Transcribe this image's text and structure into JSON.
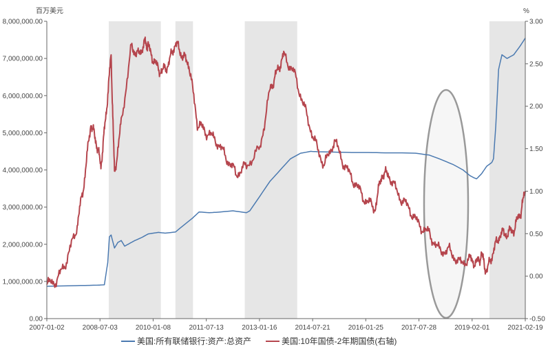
{
  "chart_data": {
    "type": "line",
    "title": "",
    "left_unit": "百万美元",
    "right_unit": "%",
    "x_tick_labels": [
      "2007-01-02",
      "2008-07-03",
      "2010-01-08",
      "2011-07-13",
      "2013-01-16",
      "2014-07-21",
      "2016-01-25",
      "2017-07-28",
      "2019-02-01",
      "2021-02-19"
    ],
    "x_range": [
      2007.0,
      2021.14
    ],
    "y_left": {
      "min": 0,
      "max": 8000000,
      "ticks": [
        "0.00",
        "1,000,000.00",
        "2,000,000.00",
        "3,000,000.00",
        "4,000,000.00",
        "5,000,000.00",
        "6,000,000.00",
        "7,000,000.00",
        "8,000,000.00"
      ]
    },
    "y_right": {
      "min": -0.5,
      "max": 3.0,
      "ticks": [
        "-0.50",
        "0.00",
        "0.50",
        "1.00",
        "1.50",
        "2.00",
        "2.50",
        "3.00"
      ]
    },
    "shaded_periods": [
      [
        2008.83,
        2010.37
      ],
      [
        2010.8,
        2011.32
      ],
      [
        2012.85,
        2014.4
      ],
      [
        2020.08,
        2021.14
      ]
    ],
    "highlight_ellipse": {
      "center_year": 2018.8,
      "center_value_right": 0.85,
      "note": "ellipse marking 2018-2019 period"
    },
    "series": [
      {
        "name": "美国:所有联储银行:资产:总资产",
        "axis": "left",
        "color": "#4a79b0",
        "x": [
          2007.0,
          2007.5,
          2008.0,
          2008.5,
          2008.7,
          2008.8,
          2008.85,
          2008.9,
          2009.0,
          2009.1,
          2009.2,
          2009.3,
          2009.4,
          2009.5,
          2009.6,
          2009.8,
          2010.0,
          2010.3,
          2010.5,
          2010.8,
          2011.0,
          2011.3,
          2011.5,
          2011.8,
          2012.0,
          2012.5,
          2012.9,
          2013.0,
          2013.3,
          2013.6,
          2013.9,
          2014.2,
          2014.5,
          2014.8,
          2015.0,
          2015.5,
          2016.0,
          2016.5,
          2017.0,
          2017.5,
          2017.9,
          2018.3,
          2018.6,
          2019.0,
          2019.3,
          2019.5,
          2019.6,
          2019.7,
          2019.85,
          2020.0,
          2020.15,
          2020.2,
          2020.27,
          2020.35,
          2020.45,
          2020.6,
          2020.8,
          2021.0,
          2021.14
        ],
        "values": [
          870000,
          880000,
          890000,
          900000,
          910000,
          1500000,
          2200000,
          2250000,
          1900000,
          2050000,
          2100000,
          1950000,
          2000000,
          2050000,
          2100000,
          2180000,
          2280000,
          2320000,
          2300000,
          2330000,
          2480000,
          2700000,
          2870000,
          2850000,
          2860000,
          2900000,
          2850000,
          2900000,
          3300000,
          3700000,
          4000000,
          4300000,
          4450000,
          4500000,
          4490000,
          4480000,
          4470000,
          4470000,
          4460000,
          4460000,
          4450000,
          4400000,
          4300000,
          4150000,
          4000000,
          3850000,
          3800000,
          3760000,
          3900000,
          4100000,
          4200000,
          4300000,
          5200000,
          6700000,
          7100000,
          7000000,
          7100000,
          7350000,
          7550000
        ]
      },
      {
        "name": "美国:10年国债-2年期国债(右轴)",
        "axis": "right",
        "color": "#b5454d",
        "x": [
          2007.0,
          2007.3,
          2007.6,
          2007.9,
          2008.1,
          2008.3,
          2008.45,
          2008.6,
          2008.75,
          2008.9,
          2009.0,
          2009.2,
          2009.5,
          2009.7,
          2009.9,
          2010.0,
          2010.2,
          2010.4,
          2010.6,
          2010.8,
          2011.0,
          2011.2,
          2011.45,
          2011.7,
          2012.0,
          2012.3,
          2012.6,
          2012.9,
          2013.3,
          2013.6,
          2013.8,
          2014.0,
          2014.3,
          2014.6,
          2014.9,
          2015.2,
          2015.5,
          2015.8,
          2016.1,
          2016.4,
          2016.7,
          2016.9,
          2017.1,
          2017.4,
          2017.7,
          2018.0,
          2018.3,
          2018.6,
          2018.9,
          2019.2,
          2019.5,
          2019.7,
          2019.85,
          2020.0,
          2020.2,
          2020.4,
          2020.6,
          2020.8,
          2021.0,
          2021.14
        ],
        "values": [
          -0.1,
          -0.05,
          0.2,
          0.6,
          1.1,
          1.8,
          1.6,
          1.3,
          1.9,
          2.6,
          1.2,
          1.8,
          2.7,
          2.6,
          2.75,
          2.7,
          2.5,
          2.4,
          2.5,
          2.75,
          2.6,
          2.5,
          1.8,
          1.7,
          1.6,
          1.4,
          1.2,
          1.3,
          1.5,
          2.2,
          2.4,
          2.6,
          2.4,
          2.0,
          1.6,
          1.3,
          1.6,
          1.3,
          1.1,
          0.9,
          0.8,
          1.2,
          1.2,
          0.95,
          0.8,
          0.6,
          0.5,
          0.3,
          0.3,
          0.15,
          0.2,
          0.15,
          0.25,
          0.05,
          0.3,
          0.5,
          0.5,
          0.55,
          0.75,
          1.0
        ]
      }
    ]
  },
  "legend": {
    "item1": "美国:所有联储银行:资产:总资产",
    "item2": "美国:10年国债-2年期国债(右轴)"
  }
}
